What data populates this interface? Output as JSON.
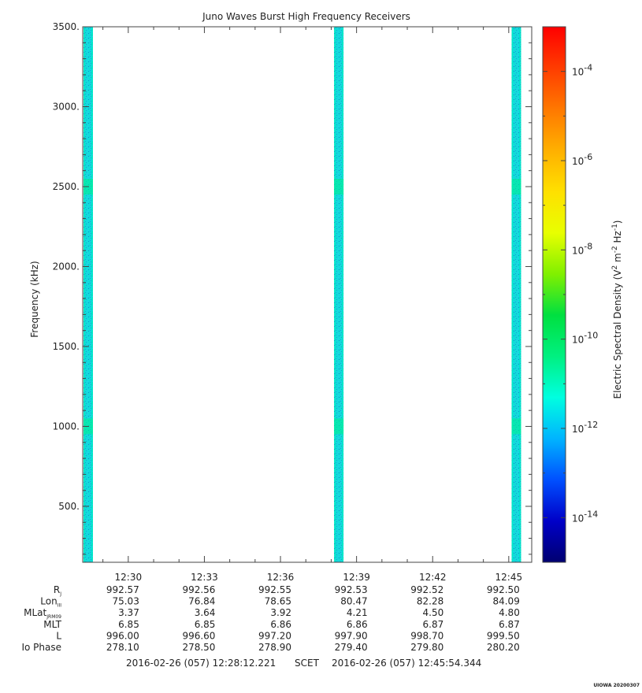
{
  "chart_data": {
    "type": "heatmap",
    "title": "Juno Waves Burst High Frequency Receivers",
    "ylabel": "Frequency (kHz)",
    "ylim": [
      150,
      3500
    ],
    "y_ticks": [
      {
        "value": 500,
        "label": "500."
      },
      {
        "value": 1000,
        "label": "1000."
      },
      {
        "value": 1500,
        "label": "1500."
      },
      {
        "value": 2000,
        "label": "2000."
      },
      {
        "value": 2500,
        "label": "2500."
      },
      {
        "value": 3000,
        "label": "3000."
      },
      {
        "value": 3500,
        "label": "3500."
      }
    ],
    "x_ticks": [
      "12:30",
      "12:33",
      "12:36",
      "12:39",
      "12:42",
      "12:45"
    ],
    "x_start": "12:28:12.221",
    "x_end": "12:45:54.344",
    "bursts": [
      {
        "time": "12:28"
      },
      {
        "time": "12:38"
      },
      {
        "time": "12:45"
      }
    ],
    "colorbar": {
      "label_main": "Electric Spectral Density (V",
      "label_sup1": "2",
      "label_mid": " m",
      "label_sup2": "-2",
      "label_end": " Hz",
      "label_sup3": "-1",
      "label_close": ")",
      "scale": "log",
      "range": [
        -15,
        -3
      ],
      "ticks": [
        {
          "base": "10",
          "exp": "-4",
          "value": -4
        },
        {
          "base": "10",
          "exp": "-6",
          "value": -6
        },
        {
          "base": "10",
          "exp": "-8",
          "value": -8
        },
        {
          "base": "10",
          "exp": "-10",
          "value": -10
        },
        {
          "base": "10",
          "exp": "-12",
          "value": -12
        },
        {
          "base": "10",
          "exp": "-14",
          "value": -14
        }
      ],
      "colors": [
        "#000070",
        "#0000c8",
        "#0050ff",
        "#00b4ff",
        "#00ffe0",
        "#00f080",
        "#00e040",
        "#80f000",
        "#e8ff00",
        "#ffe000",
        "#ffb000",
        "#ff7800",
        "#ff3c00",
        "#ff0000"
      ]
    },
    "ephemeris": {
      "labels": [
        {
          "main": "R",
          "sub": "J"
        },
        {
          "main": "Lon",
          "sub": "III"
        },
        {
          "main": "MLat",
          "sub": "JRM09"
        },
        {
          "main": "MLT",
          "sub": ""
        },
        {
          "main": "L",
          "sub": ""
        },
        {
          "main": "Io Phase",
          "sub": ""
        }
      ],
      "rows": [
        [
          "992.57",
          "992.56",
          "992.55",
          "992.53",
          "992.52",
          "992.50"
        ],
        [
          "75.03",
          "76.84",
          "78.65",
          "80.47",
          "82.28",
          "84.09"
        ],
        [
          "3.37",
          "3.64",
          "3.92",
          "4.21",
          "4.50",
          "4.80"
        ],
        [
          "6.85",
          "6.85",
          "6.86",
          "6.86",
          "6.87",
          "6.87"
        ],
        [
          "996.00",
          "996.60",
          "997.20",
          "997.90",
          "998.70",
          "999.50"
        ],
        [
          "278.10",
          "278.50",
          "278.90",
          "279.40",
          "279.80",
          "280.20"
        ]
      ]
    },
    "footer": {
      "start": "2016-02-26 (057) 12:28:12.221",
      "mid": "SCET",
      "end": "2016-02-26 (057) 12:45:54.344"
    },
    "credit": "UIOWA 20200307"
  }
}
